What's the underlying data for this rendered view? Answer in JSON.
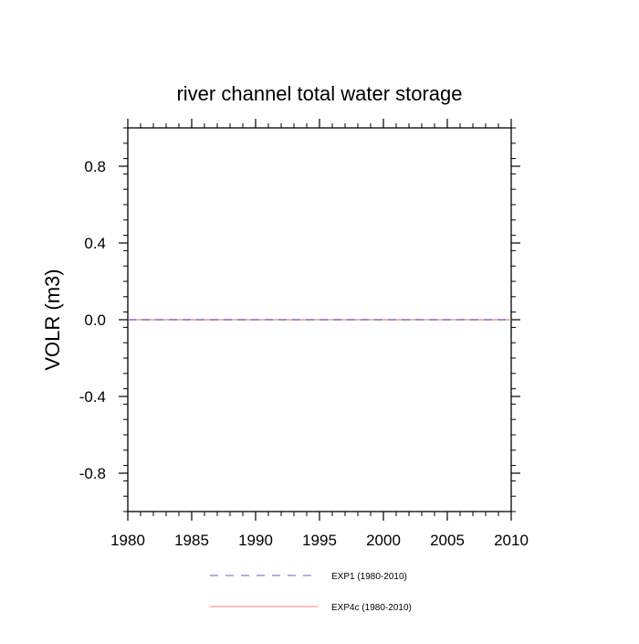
{
  "chart_data": {
    "type": "line",
    "title": "river channel total water storage",
    "xlabel": "",
    "ylabel": "VOLR  (m3)",
    "xlim": [
      1980,
      2010
    ],
    "ylim": [
      -1.0,
      1.0
    ],
    "xticks": [
      1980,
      1985,
      1990,
      1995,
      2000,
      2005,
      2010
    ],
    "xtick_labels": [
      "1980",
      "1985",
      "1990",
      "1995",
      "2000",
      "2005",
      "2010"
    ],
    "yticks": [
      -0.8,
      -0.4,
      0.0,
      0.4,
      0.8
    ],
    "ytick_labels": [
      "-0.8",
      "-0.4",
      "0.0",
      "0.4",
      "0.8"
    ],
    "grid": false,
    "legend_position": "bottom-center",
    "series": [
      {
        "name": "EXP1 (1980-2010)",
        "color": "#6a5acd",
        "line_style": "dashed",
        "x": [
          1980,
          2010
        ],
        "y": [
          0.0,
          0.0
        ]
      },
      {
        "name": "EXP4c (1980-2010)",
        "color": "#f08080",
        "line_style": "solid",
        "x": [
          1980,
          2010
        ],
        "y": [
          0.0,
          0.0
        ]
      }
    ]
  }
}
